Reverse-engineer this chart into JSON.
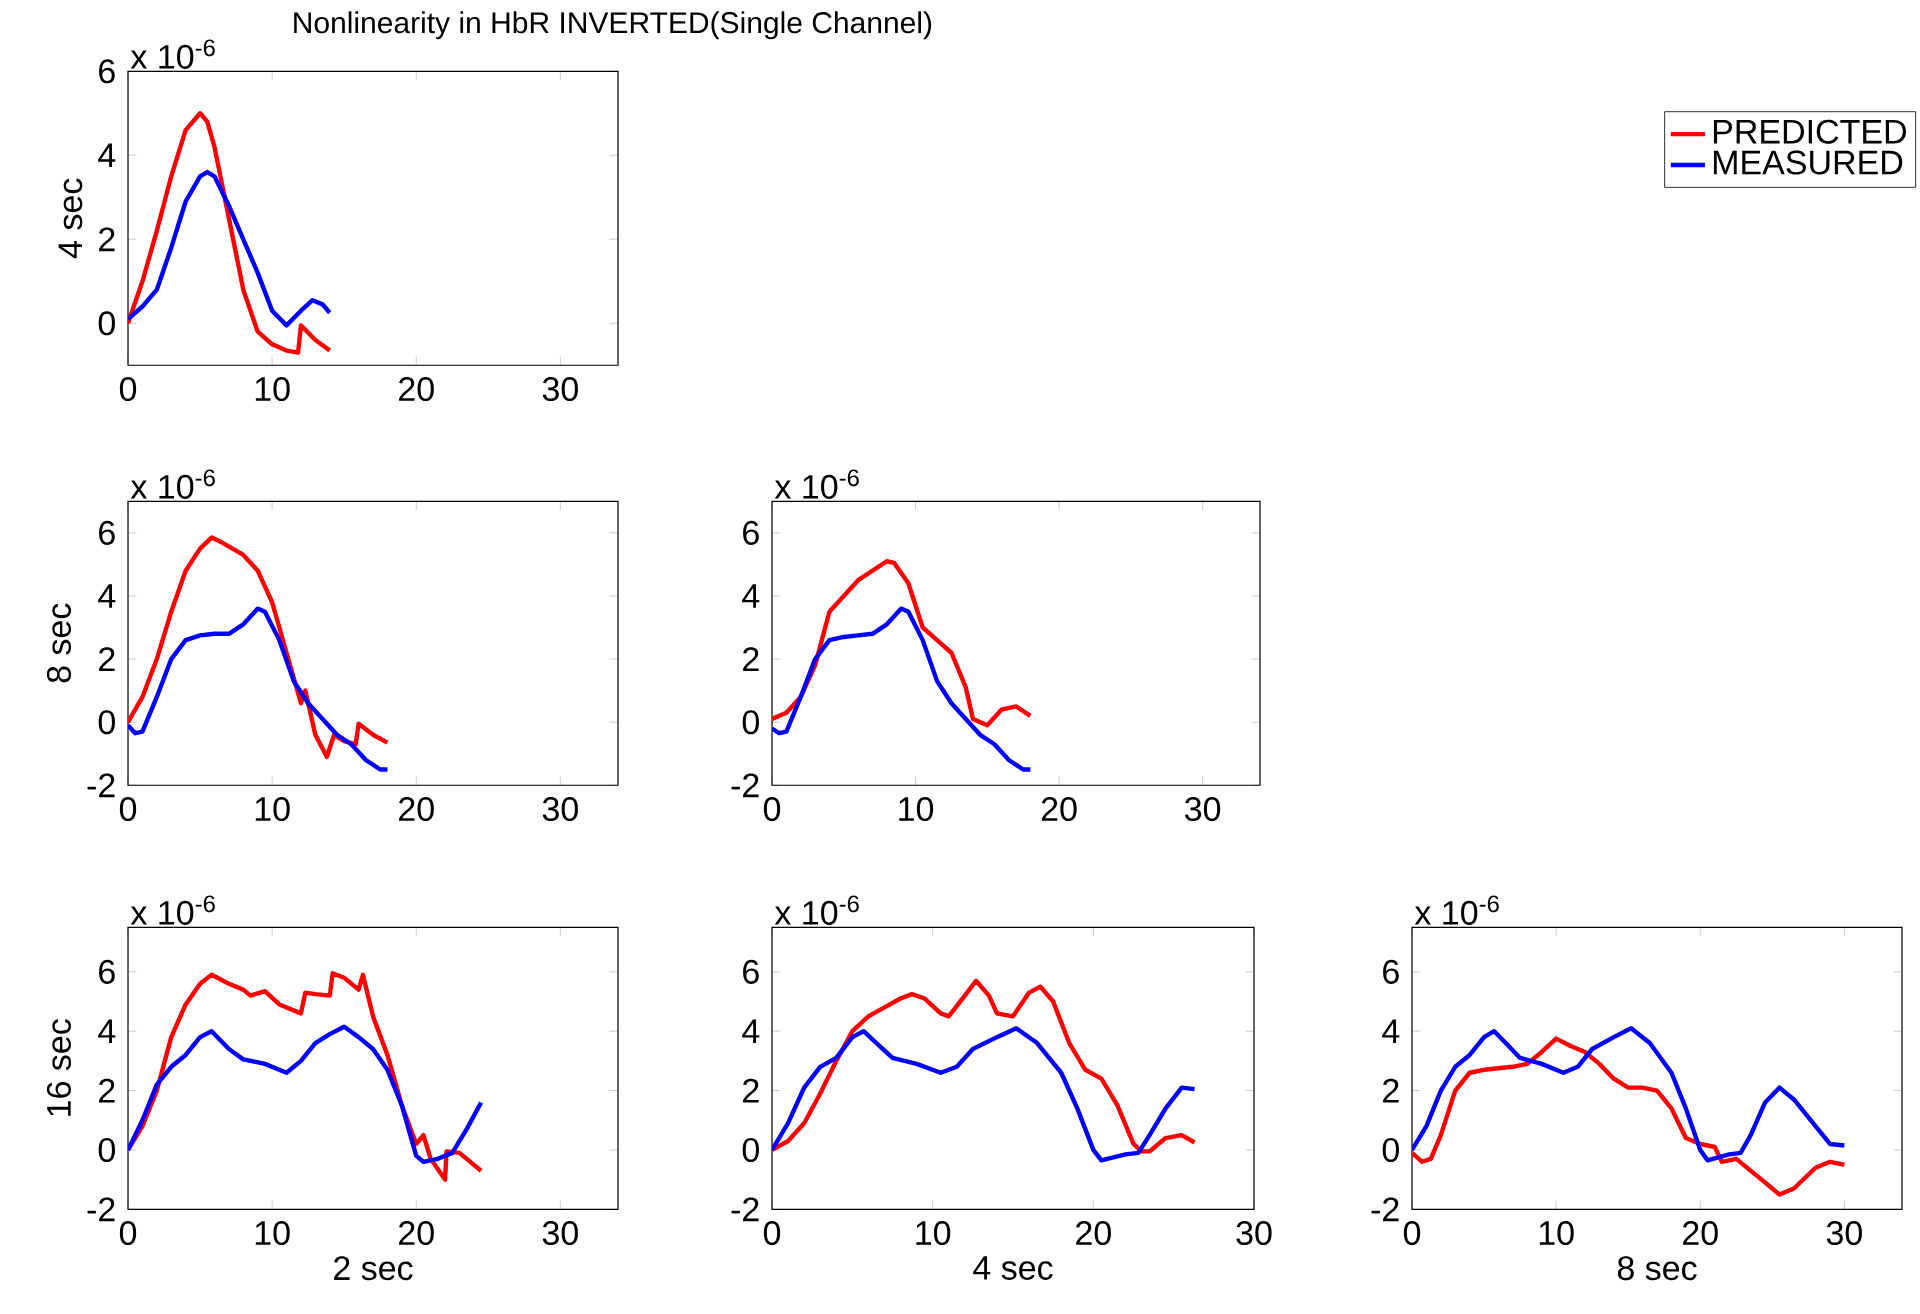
{
  "chart_data": [
    {
      "type": "line",
      "title": "Nonlinearity in HbR INVERTED(Single Channel)",
      "ylabel": "4 sec",
      "annotations": [
        "x 10$^{-6}$"
      ],
      "legend": "top right",
      "xlim": [
        0,
        34
      ],
      "ylim": [
        -1,
        6
      ],
      "xticks": [
        0,
        10,
        20,
        30
      ],
      "yticks": [
        0,
        2,
        4,
        6
      ],
      "series": [
        {
          "name": "PREDICTED",
          "color": "#ff0000",
          "x": [
            0,
            1,
            2,
            3,
            4,
            5,
            5.5,
            6,
            7,
            8,
            9,
            10,
            11,
            11.8,
            12,
            13,
            14
          ],
          "values": [
            0,
            1,
            2.2,
            3.5,
            4.6,
            5.0,
            4.8,
            4.2,
            2.5,
            0.8,
            -0.2,
            -0.5,
            -0.65,
            -0.7,
            -0.05,
            -0.4,
            -0.65
          ]
        },
        {
          "name": "MEASURED",
          "color": "#0000ff",
          "x": [
            0,
            1,
            2,
            3,
            4,
            5,
            5.5,
            6,
            7,
            8,
            9,
            10,
            11,
            12,
            12.8,
            13.5,
            14
          ],
          "values": [
            0.1,
            0.4,
            0.8,
            1.8,
            2.9,
            3.5,
            3.6,
            3.5,
            2.8,
            2.0,
            1.2,
            0.3,
            -0.05,
            0.3,
            0.55,
            0.45,
            0.25
          ]
        }
      ]
    },
    {
      "type": "line",
      "ylabel": "8 sec",
      "annotations": [
        "x 10$^{-6}$"
      ],
      "xlim": [
        0,
        34
      ],
      "ylim": [
        -2,
        7
      ],
      "xticks": [
        0,
        10,
        20,
        30
      ],
      "yticks": [
        -2,
        0,
        2,
        4,
        6
      ],
      "series": [
        {
          "color": "#ff0000",
          "x": [
            0,
            1,
            2,
            3,
            4,
            5,
            5.8,
            6.5,
            8,
            9,
            10,
            11,
            12,
            12.3,
            13,
            13.8,
            14.3,
            15,
            15.8,
            16,
            17,
            18
          ],
          "values": [
            0,
            0.8,
            2.0,
            3.5,
            4.8,
            5.5,
            5.85,
            5.7,
            5.3,
            4.8,
            3.8,
            2.2,
            0.6,
            1.0,
            -0.4,
            -1.1,
            -0.4,
            -0.6,
            -0.7,
            -0.05,
            -0.4,
            -0.65
          ]
        },
        {
          "color": "#0000ff",
          "x": [
            0,
            0.5,
            1,
            2,
            3,
            4,
            5,
            6,
            7,
            8,
            9,
            9.5,
            10.5,
            11.5,
            12.5,
            13.5,
            14.5,
            15.5,
            16.5,
            17.5,
            18
          ],
          "values": [
            -0.1,
            -0.35,
            -0.3,
            0.8,
            2.0,
            2.6,
            2.75,
            2.8,
            2.8,
            3.1,
            3.6,
            3.5,
            2.6,
            1.3,
            0.6,
            0.1,
            -0.4,
            -0.7,
            -1.2,
            -1.5,
            -1.5
          ]
        }
      ]
    },
    {
      "type": "line",
      "annotations": [
        "x 10$^{-6}$"
      ],
      "xlim": [
        0,
        34
      ],
      "ylim": [
        -2,
        7
      ],
      "xticks": [
        0,
        10,
        20,
        30
      ],
      "yticks": [
        -2,
        0,
        2,
        4,
        6
      ],
      "series": [
        {
          "color": "#ff0000",
          "x": [
            0,
            1,
            2,
            3,
            4,
            5,
            6,
            7,
            8,
            8.5,
            9.5,
            10.5,
            11.5,
            12.5,
            13.5,
            14,
            15,
            16,
            17,
            18
          ],
          "values": [
            0.1,
            0.3,
            0.8,
            1.8,
            3.5,
            4.0,
            4.5,
            4.8,
            5.1,
            5.05,
            4.4,
            3.0,
            2.6,
            2.2,
            1.1,
            0.1,
            -0.1,
            0.4,
            0.5,
            0.2
          ]
        },
        {
          "color": "#0000ff",
          "x": [
            0,
            0.5,
            1,
            2,
            3,
            4,
            5,
            6,
            7,
            8,
            9,
            9.5,
            10.5,
            11.5,
            12.5,
            13.5,
            14.5,
            15.5,
            16.5,
            17.5,
            18
          ],
          "values": [
            -0.2,
            -0.35,
            -0.3,
            0.8,
            2.0,
            2.6,
            2.7,
            2.75,
            2.8,
            3.1,
            3.6,
            3.5,
            2.6,
            1.3,
            0.6,
            0.1,
            -0.4,
            -0.7,
            -1.2,
            -1.5,
            -1.5
          ]
        }
      ]
    },
    {
      "type": "line",
      "ylabel": "16 sec",
      "xlabel": "2 sec",
      "annotations": [
        "x 10$^{-6}$"
      ],
      "xlim": [
        0,
        34
      ],
      "ylim": [
        -2,
        7.5
      ],
      "xticks": [
        0,
        10,
        20,
        30
      ],
      "yticks": [
        -2,
        0,
        2,
        4,
        6
      ],
      "series": [
        {
          "color": "#ff0000",
          "x": [
            0,
            1,
            2,
            3,
            4,
            5,
            5.8,
            7,
            8,
            8.5,
            9.5,
            10.5,
            12,
            12.3,
            13,
            14,
            14.2,
            15,
            16,
            16.3,
            17,
            18,
            19,
            20,
            20.5,
            21,
            22,
            22.1,
            23,
            24.5
          ],
          "values": [
            0,
            0.8,
            2.0,
            3.8,
            4.9,
            5.6,
            5.9,
            5.6,
            5.4,
            5.2,
            5.35,
            4.9,
            4.6,
            5.3,
            5.25,
            5.2,
            5.95,
            5.8,
            5.4,
            5.9,
            4.5,
            3.2,
            1.5,
            0.2,
            0.5,
            -0.3,
            -1.0,
            -0.05,
            -0.1,
            -0.7
          ]
        },
        {
          "color": "#0000ff",
          "x": [
            0,
            1,
            2,
            3,
            4,
            5,
            5.8,
            7,
            8,
            9.5,
            11,
            12,
            13,
            14,
            15,
            16,
            17,
            18,
            19,
            20,
            20.5,
            21.5,
            22.5,
            23.5,
            24.5
          ],
          "values": [
            0,
            1.0,
            2.2,
            2.8,
            3.2,
            3.8,
            4.0,
            3.4,
            3.05,
            2.9,
            2.6,
            3.0,
            3.6,
            3.9,
            4.15,
            3.8,
            3.4,
            2.7,
            1.5,
            -0.2,
            -0.4,
            -0.3,
            -0.1,
            0.7,
            1.6
          ]
        }
      ]
    },
    {
      "type": "line",
      "xlabel": "4 sec",
      "annotations": [
        "x 10$^{-6}$"
      ],
      "xlim": [
        0,
        30
      ],
      "ylim": [
        -2,
        7.5
      ],
      "xticks": [
        0,
        10,
        20,
        30
      ],
      "yticks": [
        -2,
        0,
        2,
        4,
        6
      ],
      "series": [
        {
          "color": "#ff0000",
          "x": [
            0,
            1,
            2,
            3,
            4,
            5,
            6,
            7,
            8,
            8.7,
            9.5,
            10.5,
            11,
            12,
            12.7,
            13.5,
            14,
            15,
            16,
            16.7,
            17.5,
            18.5,
            19.5,
            20.5,
            21.5,
            22.5,
            23,
            23.5,
            24.5,
            25.5,
            26.3
          ],
          "values": [
            0,
            0.3,
            0.9,
            1.9,
            3.0,
            4.0,
            4.5,
            4.8,
            5.1,
            5.25,
            5.1,
            4.6,
            4.5,
            5.2,
            5.7,
            5.2,
            4.6,
            4.5,
            5.3,
            5.5,
            5.0,
            3.6,
            2.7,
            2.4,
            1.5,
            0.2,
            -0.05,
            -0.05,
            0.4,
            0.5,
            0.25
          ]
        },
        {
          "color": "#0000ff",
          "x": [
            0,
            1,
            2,
            3,
            4,
            5,
            5.7,
            6.5,
            7.5,
            9,
            10.5,
            11.5,
            12.5,
            14,
            15.2,
            16.5,
            18,
            19,
            20,
            20.5,
            22,
            22.8,
            23.5,
            24.5,
            25.5,
            26.3
          ],
          "values": [
            0,
            0.9,
            2.1,
            2.8,
            3.1,
            3.8,
            4.0,
            3.6,
            3.1,
            2.9,
            2.6,
            2.8,
            3.4,
            3.8,
            4.1,
            3.6,
            2.6,
            1.4,
            0,
            -0.35,
            -0.15,
            -0.1,
            0.5,
            1.4,
            2.1,
            2.05
          ]
        }
      ]
    },
    {
      "type": "line",
      "xlabel": "8 sec",
      "annotations": [
        "x 10$^{-6}$"
      ],
      "xlim": [
        0,
        34
      ],
      "ylim": [
        -2,
        7.5
      ],
      "xticks": [
        0,
        10,
        20,
        30
      ],
      "yticks": [
        -2,
        0,
        2,
        4,
        6
      ],
      "series": [
        {
          "color": "#ff0000",
          "x": [
            0,
            0.7,
            1.3,
            2,
            3,
            4,
            5,
            6,
            7,
            8,
            9,
            10,
            11,
            12,
            13,
            14,
            15,
            16,
            17,
            18,
            19,
            20,
            21,
            21.5,
            22.5,
            24,
            25.5,
            26.5,
            28,
            29,
            30
          ],
          "values": [
            -0.1,
            -0.4,
            -0.3,
            0.5,
            2.0,
            2.6,
            2.7,
            2.75,
            2.8,
            2.9,
            3.3,
            3.75,
            3.5,
            3.3,
            2.9,
            2.4,
            2.1,
            2.1,
            2.0,
            1.4,
            0.4,
            0.2,
            0.1,
            -0.4,
            -0.3,
            -0.9,
            -1.5,
            -1.3,
            -0.6,
            -0.4,
            -0.5
          ]
        },
        {
          "color": "#0000ff",
          "x": [
            0,
            1,
            2,
            3,
            4,
            5,
            5.7,
            6.5,
            7.5,
            9,
            10.5,
            11.5,
            12.5,
            14,
            15.2,
            16.5,
            18,
            19,
            20,
            20.5,
            22,
            22.8,
            23.5,
            24.5,
            25.5,
            26.5,
            28,
            29,
            30
          ],
          "values": [
            0,
            0.8,
            2.0,
            2.8,
            3.2,
            3.8,
            4.0,
            3.6,
            3.1,
            2.9,
            2.6,
            2.8,
            3.4,
            3.8,
            4.1,
            3.6,
            2.6,
            1.4,
            0,
            -0.35,
            -0.15,
            -0.1,
            0.5,
            1.6,
            2.1,
            1.7,
            0.8,
            0.2,
            0.15
          ]
        }
      ]
    }
  ]
}
